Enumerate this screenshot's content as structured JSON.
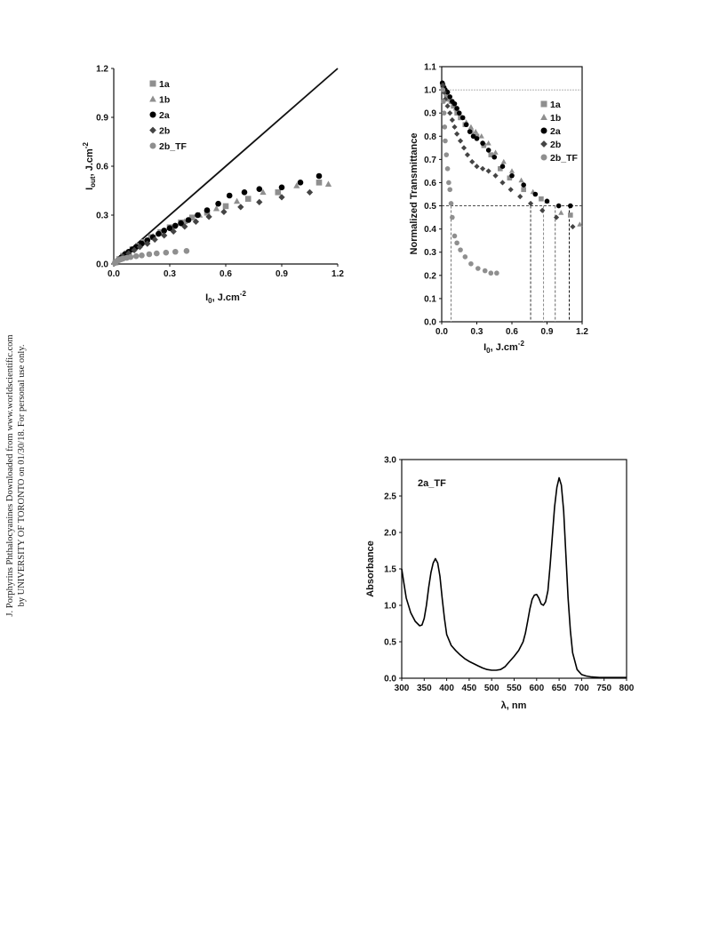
{
  "side_note": {
    "line1": "J. Porphyrins Phthalocyanines Downloaded from www.worldscientific.com",
    "line2": "by UNIVERSITY OF TORONTO on 01/30/18. For personal use only."
  },
  "chart_data": [
    {
      "id": "chart1",
      "type": "scatter",
      "xlabel_main": "I",
      "xlabel_sub": "0",
      "xlabel_rest": ", J.cm",
      "xlabel_sup": "-2",
      "ylabel_main": "I",
      "ylabel_sub": "out",
      "ylabel_rest": ", J.cm",
      "ylabel_sup": "-2",
      "xlim": [
        0,
        1.2
      ],
      "ylim": [
        0,
        1.2
      ],
      "xticks": [
        "0.0",
        "0.3",
        "0.6",
        "0.9",
        "1.2"
      ],
      "yticks": [
        "0.0",
        "0.3",
        "0.6",
        "0.9",
        "1.2"
      ],
      "grid": false,
      "legend_position": "top-left",
      "reference_line": {
        "x": [
          0,
          1.2
        ],
        "y": [
          0,
          1.2
        ]
      },
      "series": [
        {
          "name": "1a",
          "marker": "square",
          "color": "#8f8f8f",
          "x": [
            0.01,
            0.03,
            0.05,
            0.07,
            0.1,
            0.13,
            0.16,
            0.2,
            0.25,
            0.3,
            0.36,
            0.42,
            0.5,
            0.6,
            0.72,
            0.88,
            1.1
          ],
          "y": [
            0.01,
            0.03,
            0.05,
            0.065,
            0.09,
            0.11,
            0.135,
            0.165,
            0.195,
            0.225,
            0.255,
            0.285,
            0.315,
            0.355,
            0.4,
            0.44,
            0.5
          ]
        },
        {
          "name": "1b",
          "marker": "triangle",
          "color": "#8f8f8f",
          "x": [
            0.01,
            0.03,
            0.05,
            0.07,
            0.1,
            0.13,
            0.17,
            0.21,
            0.26,
            0.32,
            0.38,
            0.46,
            0.55,
            0.66,
            0.8,
            0.98,
            1.15
          ],
          "y": [
            0.01,
            0.03,
            0.05,
            0.065,
            0.09,
            0.11,
            0.14,
            0.17,
            0.2,
            0.23,
            0.26,
            0.3,
            0.34,
            0.385,
            0.44,
            0.48,
            0.49
          ]
        },
        {
          "name": "2a",
          "marker": "circle",
          "color": "#000000",
          "x": [
            0.01,
            0.02,
            0.04,
            0.06,
            0.08,
            0.1,
            0.12,
            0.15,
            0.18,
            0.21,
            0.24,
            0.27,
            0.3,
            0.33,
            0.36,
            0.4,
            0.45,
            0.5,
            0.56,
            0.62,
            0.7,
            0.78,
            0.9,
            1.0,
            1.1
          ],
          "y": [
            0.01,
            0.02,
            0.04,
            0.06,
            0.075,
            0.09,
            0.105,
            0.125,
            0.145,
            0.165,
            0.185,
            0.205,
            0.22,
            0.235,
            0.25,
            0.27,
            0.3,
            0.33,
            0.37,
            0.42,
            0.44,
            0.46,
            0.47,
            0.5,
            0.54
          ]
        },
        {
          "name": "2b",
          "marker": "diamond",
          "color": "#444444",
          "x": [
            0.01,
            0.03,
            0.05,
            0.08,
            0.11,
            0.14,
            0.18,
            0.22,
            0.27,
            0.32,
            0.38,
            0.44,
            0.51,
            0.59,
            0.68,
            0.78,
            0.9,
            1.05
          ],
          "y": [
            0.01,
            0.03,
            0.045,
            0.065,
            0.085,
            0.105,
            0.125,
            0.15,
            0.175,
            0.2,
            0.23,
            0.26,
            0.29,
            0.32,
            0.35,
            0.38,
            0.41,
            0.44
          ]
        },
        {
          "name": "2b_TF",
          "marker": "circle",
          "color": "#8f8f8f",
          "x": [
            0.005,
            0.01,
            0.015,
            0.02,
            0.03,
            0.04,
            0.05,
            0.07,
            0.09,
            0.12,
            0.15,
            0.19,
            0.23,
            0.28,
            0.33,
            0.39
          ],
          "y": [
            0.005,
            0.01,
            0.015,
            0.02,
            0.025,
            0.03,
            0.033,
            0.038,
            0.043,
            0.048,
            0.053,
            0.06,
            0.065,
            0.07,
            0.075,
            0.08
          ]
        }
      ]
    },
    {
      "id": "chart2",
      "type": "scatter",
      "xlabel_main": "I",
      "xlabel_sub": "0",
      "xlabel_rest": ", J.cm",
      "xlabel_sup": "-2",
      "ylabel": "Normalized Transmittance",
      "xlim": [
        0,
        1.2
      ],
      "ylim": [
        0,
        1.1
      ],
      "xticks": [
        "0.0",
        "0.3",
        "0.6",
        "0.9",
        "1.2"
      ],
      "yticks": [
        "0.0",
        "0.1",
        "0.2",
        "0.3",
        "0.4",
        "0.5",
        "0.6",
        "0.7",
        "0.8",
        "0.9",
        "1.0",
        "1.1"
      ],
      "grid": false,
      "legend_position": "top-right",
      "reference_lines": {
        "horizontal_1": 1.0,
        "horizontal_half": 0.5,
        "verticals_at_half": [
          0.08,
          0.76,
          0.87,
          0.97,
          1.09
        ]
      },
      "series": [
        {
          "name": "1a",
          "marker": "square",
          "color": "#8f8f8f",
          "x": [
            0.01,
            0.02,
            0.04,
            0.06,
            0.08,
            0.1,
            0.13,
            0.16,
            0.2,
            0.25,
            0.3,
            0.36,
            0.42,
            0.5,
            0.58,
            0.7,
            0.85,
            1.1
          ],
          "y": [
            1.02,
            1.0,
            0.98,
            0.96,
            0.95,
            0.93,
            0.9,
            0.88,
            0.85,
            0.82,
            0.8,
            0.76,
            0.72,
            0.66,
            0.62,
            0.57,
            0.53,
            0.46
          ]
        },
        {
          "name": "1b",
          "marker": "triangle",
          "color": "#8f8f8f",
          "x": [
            0.01,
            0.02,
            0.04,
            0.06,
            0.08,
            0.1,
            0.12,
            0.15,
            0.18,
            0.21,
            0.25,
            0.29,
            0.34,
            0.4,
            0.46,
            0.53,
            0.6,
            0.68,
            0.78,
            0.9,
            1.02,
            1.18
          ],
          "y": [
            1.02,
            1.0,
            0.98,
            0.96,
            0.95,
            0.93,
            0.92,
            0.9,
            0.88,
            0.86,
            0.84,
            0.82,
            0.8,
            0.77,
            0.73,
            0.69,
            0.65,
            0.61,
            0.56,
            0.52,
            0.47,
            0.42
          ]
        },
        {
          "name": "2a",
          "marker": "circle",
          "color": "#000000",
          "x": [
            0.005,
            0.01,
            0.02,
            0.03,
            0.05,
            0.07,
            0.09,
            0.11,
            0.13,
            0.15,
            0.18,
            0.21,
            0.24,
            0.27,
            0.3,
            0.35,
            0.4,
            0.45,
            0.52,
            0.6,
            0.7,
            0.8,
            0.9,
            1.0,
            1.1
          ],
          "y": [
            1.03,
            1.02,
            1.01,
            1.0,
            0.99,
            0.97,
            0.95,
            0.94,
            0.92,
            0.9,
            0.88,
            0.85,
            0.82,
            0.8,
            0.79,
            0.77,
            0.74,
            0.71,
            0.67,
            0.63,
            0.59,
            0.55,
            0.52,
            0.5,
            0.5
          ]
        },
        {
          "name": "2b",
          "marker": "diamond",
          "color": "#444444",
          "x": [
            0.01,
            0.02,
            0.03,
            0.05,
            0.07,
            0.09,
            0.11,
            0.13,
            0.16,
            0.19,
            0.22,
            0.26,
            0.3,
            0.35,
            0.4,
            0.46,
            0.52,
            0.59,
            0.67,
            0.76,
            0.86,
            0.98,
            1.12
          ],
          "y": [
            1.02,
            0.99,
            0.96,
            0.93,
            0.9,
            0.87,
            0.84,
            0.81,
            0.78,
            0.75,
            0.72,
            0.69,
            0.67,
            0.66,
            0.65,
            0.63,
            0.6,
            0.57,
            0.54,
            0.51,
            0.48,
            0.45,
            0.41
          ]
        },
        {
          "name": "2b_TF",
          "marker": "circle",
          "color": "#8f8f8f",
          "x": [
            0.01,
            0.015,
            0.02,
            0.025,
            0.03,
            0.04,
            0.05,
            0.06,
            0.07,
            0.08,
            0.09,
            0.11,
            0.13,
            0.16,
            0.2,
            0.25,
            0.31,
            0.37,
            0.42,
            0.47
          ],
          "y": [
            1.0,
            0.95,
            0.9,
            0.84,
            0.78,
            0.72,
            0.66,
            0.6,
            0.57,
            0.51,
            0.45,
            0.37,
            0.34,
            0.31,
            0.28,
            0.25,
            0.23,
            0.22,
            0.21,
            0.21
          ]
        }
      ]
    },
    {
      "id": "chart3",
      "type": "line",
      "annotation": "2a_TF",
      "xlabel": "λ, nm",
      "ylabel": "Absorbance",
      "xlim": [
        300,
        800
      ],
      "ylim": [
        0,
        3.0
      ],
      "xticks": [
        "300",
        "350",
        "400",
        "450",
        "500",
        "550",
        "600",
        "650",
        "700",
        "750",
        "800"
      ],
      "yticks": [
        "0.0",
        "0.5",
        "1.0",
        "1.5",
        "2.0",
        "2.5",
        "3.0"
      ],
      "grid": false,
      "series": [
        {
          "color": "#000000",
          "x": [
            300,
            305,
            310,
            320,
            330,
            340,
            345,
            350,
            355,
            360,
            365,
            370,
            375,
            380,
            385,
            390,
            395,
            400,
            410,
            420,
            430,
            440,
            450,
            460,
            470,
            480,
            490,
            500,
            510,
            520,
            530,
            540,
            550,
            560,
            570,
            575,
            580,
            585,
            590,
            595,
            600,
            605,
            610,
            615,
            620,
            625,
            630,
            635,
            640,
            645,
            650,
            655,
            660,
            665,
            670,
            675,
            680,
            690,
            700,
            710,
            720,
            740,
            760,
            780,
            800
          ],
          "y": [
            1.5,
            1.3,
            1.1,
            0.9,
            0.78,
            0.72,
            0.73,
            0.82,
            1.0,
            1.25,
            1.45,
            1.58,
            1.64,
            1.58,
            1.4,
            1.1,
            0.82,
            0.6,
            0.45,
            0.38,
            0.32,
            0.27,
            0.23,
            0.2,
            0.17,
            0.14,
            0.12,
            0.11,
            0.11,
            0.12,
            0.16,
            0.23,
            0.3,
            0.38,
            0.5,
            0.62,
            0.78,
            0.95,
            1.08,
            1.14,
            1.15,
            1.1,
            1.02,
            1.0,
            1.05,
            1.2,
            1.55,
            1.95,
            2.35,
            2.62,
            2.75,
            2.65,
            2.3,
            1.7,
            1.1,
            0.65,
            0.35,
            0.12,
            0.05,
            0.03,
            0.02,
            0.01,
            0.01,
            0.01,
            0.01
          ]
        }
      ]
    }
  ]
}
